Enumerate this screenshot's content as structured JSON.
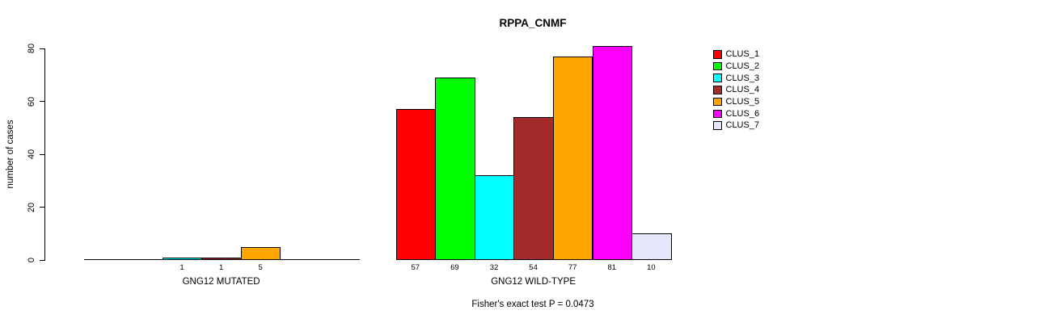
{
  "chart_data": {
    "type": "bar",
    "title": "RPPA_CNMF",
    "ylabel": "number of cases",
    "xlabel": "",
    "ylim": [
      0,
      80
    ],
    "yticks": [
      0,
      20,
      40,
      60,
      80
    ],
    "grid": false,
    "categories": [
      "CLUS_1",
      "CLUS_2",
      "CLUS_3",
      "CLUS_4",
      "CLUS_5",
      "CLUS_6",
      "CLUS_7"
    ],
    "colors": [
      "#FF0000",
      "#00FF00",
      "#00FFFF",
      "#A52A2A",
      "#FFA500",
      "#FF00FF",
      "#E6E6FA"
    ],
    "groups": [
      {
        "label": "GNG12 MUTATED",
        "values": [
          0,
          0,
          1,
          1,
          5,
          0,
          0
        ],
        "bar_labels": [
          "",
          "",
          "1",
          "1",
          "5",
          "",
          ""
        ]
      },
      {
        "label": "GNG12 WILD-TYPE",
        "values": [
          57,
          69,
          32,
          54,
          77,
          81,
          10
        ],
        "bar_labels": [
          "57",
          "69",
          "32",
          "54",
          "77",
          "81",
          "10"
        ]
      }
    ],
    "legend": {
      "position": "right",
      "entries": [
        "CLUS_1",
        "CLUS_2",
        "CLUS_3",
        "CLUS_4",
        "CLUS_5",
        "CLUS_6",
        "CLUS_7"
      ]
    },
    "annotation": "Fisher's exact test P = 0.0473"
  }
}
